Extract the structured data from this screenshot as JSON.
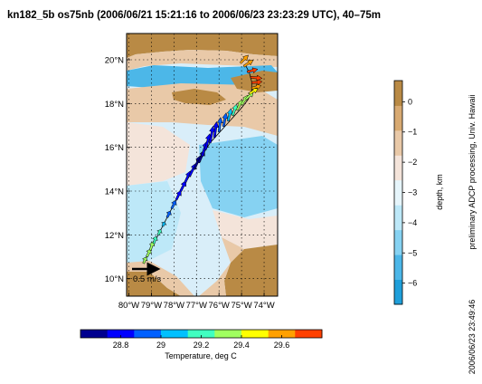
{
  "figure": {
    "title": "kn182_5b os75nb (2006/06/21 15:21:16 to 2006/06/23 23:23:29 UTC), 40–75m",
    "side_note": "preliminary ADCP processing, Univ. Hawaii",
    "timestamp": "2006/06/23 23:49:46",
    "scale_arrow_label": "0.5 m/s"
  },
  "chart_data": [
    {
      "type": "map-vector",
      "title": "kn182_5b os75nb (2006/06/21 15:21:16 to 2006/06/23 23:23:29 UTC), 40–75m",
      "x_ticks": [
        "80°W",
        "79°W",
        "78°W",
        "77°W",
        "76°W",
        "75°W",
        "74°W"
      ],
      "x_values": [
        -80,
        -79,
        -78,
        -77,
        -76,
        -75,
        -74
      ],
      "y_ticks": [
        "20°N",
        "18°N",
        "16°N",
        "14°N",
        "12°N",
        "10°N"
      ],
      "y_values": [
        20,
        18,
        16,
        14,
        12,
        10
      ],
      "xlim": [
        -80.1,
        -73.4
      ],
      "ylim": [
        9.2,
        21.2
      ],
      "grid": true,
      "scale_arrow": {
        "label": "0.5 m/s",
        "speed_ms": 0.5
      },
      "track": [
        {
          "lon": -79.35,
          "lat": 10.7
        },
        {
          "lon": -79.1,
          "lat": 11.2
        },
        {
          "lon": -78.85,
          "lat": 11.7
        },
        {
          "lon": -78.6,
          "lat": 12.2
        },
        {
          "lon": -78.35,
          "lat": 12.7
        },
        {
          "lon": -78.1,
          "lat": 13.2
        },
        {
          "lon": -77.85,
          "lat": 13.7
        },
        {
          "lon": -77.6,
          "lat": 14.2
        },
        {
          "lon": -77.3,
          "lat": 14.7
        },
        {
          "lon": -77.0,
          "lat": 15.2
        },
        {
          "lon": -76.7,
          "lat": 15.7
        },
        {
          "lon": -76.4,
          "lat": 16.2
        },
        {
          "lon": -76.05,
          "lat": 16.6
        },
        {
          "lon": -75.7,
          "lat": 17.0
        },
        {
          "lon": -75.35,
          "lat": 17.4
        },
        {
          "lon": -75.0,
          "lat": 17.8
        },
        {
          "lon": -74.7,
          "lat": 18.2
        },
        {
          "lon": -74.55,
          "lat": 18.6
        },
        {
          "lon": -74.55,
          "lat": 19.0
        },
        {
          "lon": -74.65,
          "lat": 19.4
        },
        {
          "lon": -74.85,
          "lat": 19.8
        }
      ],
      "vectors": [
        {
          "lon": -79.35,
          "lat": 10.7,
          "u": 0.05,
          "v": 0.12,
          "temp": 29.4
        },
        {
          "lon": -79.2,
          "lat": 11.0,
          "u": 0.07,
          "v": 0.15,
          "temp": 29.3
        },
        {
          "lon": -79.05,
          "lat": 11.3,
          "u": 0.06,
          "v": 0.17,
          "temp": 29.3
        },
        {
          "lon": -78.9,
          "lat": 11.6,
          "u": 0.05,
          "v": 0.14,
          "temp": 29.2
        },
        {
          "lon": -78.7,
          "lat": 12.0,
          "u": 0.05,
          "v": 0.1,
          "temp": 29.2
        },
        {
          "lon": -78.5,
          "lat": 12.4,
          "u": 0.04,
          "v": 0.08,
          "temp": 29.1
        },
        {
          "lon": -78.3,
          "lat": 12.8,
          "u": 0.06,
          "v": 0.12,
          "temp": 29.0
        },
        {
          "lon": -78.1,
          "lat": 13.2,
          "u": 0.08,
          "v": 0.16,
          "temp": 28.9
        },
        {
          "lon": -77.9,
          "lat": 13.6,
          "u": 0.09,
          "v": 0.18,
          "temp": 28.85
        },
        {
          "lon": -77.7,
          "lat": 14.0,
          "u": 0.1,
          "v": 0.2,
          "temp": 28.8
        },
        {
          "lon": -77.5,
          "lat": 14.4,
          "u": 0.1,
          "v": 0.22,
          "temp": 28.8
        },
        {
          "lon": -77.3,
          "lat": 14.7,
          "u": 0.12,
          "v": 0.24,
          "temp": 28.75
        },
        {
          "lon": -77.1,
          "lat": 15.0,
          "u": 0.12,
          "v": 0.26,
          "temp": 28.7
        },
        {
          "lon": -76.9,
          "lat": 15.3,
          "u": 0.11,
          "v": 0.24,
          "temp": 28.7
        },
        {
          "lon": -76.75,
          "lat": 15.6,
          "u": 0.09,
          "v": 0.28,
          "temp": 28.75
        },
        {
          "lon": -76.6,
          "lat": 15.9,
          "u": 0.08,
          "v": 0.3,
          "temp": 28.8
        },
        {
          "lon": -76.4,
          "lat": 16.2,
          "u": 0.06,
          "v": 0.32,
          "temp": 28.8
        },
        {
          "lon": -76.2,
          "lat": 16.45,
          "u": 0.04,
          "v": 0.3,
          "temp": 28.85
        },
        {
          "lon": -76.0,
          "lat": 16.7,
          "u": 0.03,
          "v": 0.28,
          "temp": 28.9
        },
        {
          "lon": -75.8,
          "lat": 16.95,
          "u": 0.05,
          "v": 0.26,
          "temp": 29.0
        },
        {
          "lon": -75.6,
          "lat": 17.2,
          "u": 0.06,
          "v": 0.24,
          "temp": 29.1
        },
        {
          "lon": -75.4,
          "lat": 17.45,
          "u": 0.08,
          "v": 0.22,
          "temp": 29.2
        },
        {
          "lon": -75.2,
          "lat": 17.7,
          "u": 0.1,
          "v": 0.2,
          "temp": 29.3
        },
        {
          "lon": -75.0,
          "lat": 17.95,
          "u": 0.12,
          "v": 0.18,
          "temp": 29.3
        },
        {
          "lon": -74.8,
          "lat": 18.2,
          "u": 0.14,
          "v": 0.14,
          "temp": 29.4
        },
        {
          "lon": -74.65,
          "lat": 18.45,
          "u": 0.16,
          "v": 0.1,
          "temp": 29.5
        },
        {
          "lon": -74.55,
          "lat": 18.7,
          "u": 0.18,
          "v": 0.05,
          "temp": 29.6
        },
        {
          "lon": -74.55,
          "lat": 18.95,
          "u": 0.2,
          "v": 0.02,
          "temp": 29.7
        },
        {
          "lon": -74.6,
          "lat": 19.2,
          "u": 0.22,
          "v": -0.02,
          "temp": 29.75
        },
        {
          "lon": -74.75,
          "lat": 19.45,
          "u": 0.2,
          "v": 0.05,
          "temp": 29.7
        },
        {
          "lon": -74.9,
          "lat": 19.7,
          "u": 0.18,
          "v": 0.12,
          "temp": 29.65
        },
        {
          "lon": -75.05,
          "lat": 19.85,
          "u": 0.15,
          "v": 0.15,
          "temp": 29.6
        }
      ]
    },
    {
      "type": "colorbar",
      "label": "depth, km",
      "tick_labels": [
        "0",
        "−1",
        "−2",
        "−3",
        "−4",
        "−5",
        "−6"
      ],
      "tick_values": [
        0,
        -1,
        -2,
        -3,
        -4,
        -5,
        -6
      ],
      "range": [
        -6.7,
        0.7
      ],
      "colors_low_to_high": [
        "#1f9fda",
        "#4cb7e8",
        "#86d2f2",
        "#bde8f8",
        "#e6f5fb",
        "#f4e4da",
        "#e9c9a8",
        "#d8aa72",
        "#b98a45"
      ]
    },
    {
      "type": "colorbar",
      "label": "Temperature, deg C",
      "tick_labels": [
        "28.8",
        "29",
        "29.2",
        "29.4",
        "29.6"
      ],
      "tick_values": [
        28.8,
        29.0,
        29.2,
        29.4,
        29.6
      ],
      "range": [
        28.6,
        29.8
      ],
      "colors_low_to_high": [
        "#00008f",
        "#0000ff",
        "#0060ff",
        "#00c0ff",
        "#40ffc0",
        "#a0ff60",
        "#ffff00",
        "#ffa000",
        "#ff4000"
      ]
    }
  ]
}
